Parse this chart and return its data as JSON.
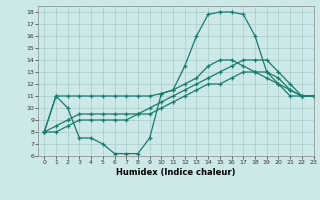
{
  "xlabel": "Humidex (Indice chaleur)",
  "ylabel": "",
  "bg_color": "#cce8e8",
  "line_color": "#1a7a6e",
  "grid_color": "#aacccc",
  "xlim": [
    -0.5,
    23
  ],
  "ylim": [
    6,
    18.5
  ],
  "xticks": [
    0,
    1,
    2,
    3,
    4,
    5,
    6,
    7,
    8,
    9,
    10,
    11,
    12,
    13,
    14,
    15,
    16,
    17,
    18,
    19,
    20,
    21,
    22,
    23
  ],
  "yticks": [
    6,
    7,
    8,
    9,
    10,
    11,
    12,
    13,
    14,
    15,
    16,
    17,
    18
  ],
  "lines": [
    {
      "x": [
        0,
        1,
        2,
        3,
        4,
        5,
        6,
        7,
        8,
        9,
        10,
        11,
        12,
        13,
        14,
        15,
        16,
        17,
        18,
        19,
        20,
        21,
        22,
        23
      ],
      "y": [
        8,
        11,
        10,
        7.5,
        7.5,
        7,
        6.2,
        6.2,
        6.2,
        7.5,
        11.2,
        11.5,
        13.5,
        16,
        17.8,
        18,
        18,
        17.8,
        16,
        13,
        12,
        11,
        11,
        11
      ]
    },
    {
      "x": [
        0,
        1,
        2,
        3,
        4,
        5,
        6,
        7,
        8,
        9,
        10,
        11,
        12,
        13,
        14,
        15,
        16,
        17,
        18,
        19,
        20,
        21,
        22,
        23
      ],
      "y": [
        8,
        11,
        11,
        11,
        11,
        11,
        11,
        11,
        11,
        11,
        11.2,
        11.5,
        12,
        12.5,
        13.5,
        14,
        14,
        13.5,
        13,
        12.5,
        12,
        11.5,
        11,
        11
      ]
    },
    {
      "x": [
        0,
        1,
        2,
        3,
        4,
        5,
        6,
        7,
        8,
        9,
        10,
        11,
        12,
        13,
        14,
        15,
        16,
        17,
        18,
        19,
        20,
        21,
        22,
        23
      ],
      "y": [
        8,
        8.5,
        9,
        9.5,
        9.5,
        9.5,
        9.5,
        9.5,
        9.5,
        10,
        10.5,
        11,
        11.5,
        12,
        12.5,
        13,
        13.5,
        14,
        14,
        14,
        13,
        12,
        11,
        11
      ]
    },
    {
      "x": [
        0,
        1,
        2,
        3,
        4,
        5,
        6,
        7,
        8,
        9,
        10,
        11,
        12,
        13,
        14,
        15,
        16,
        17,
        18,
        19,
        20,
        21,
        22,
        23
      ],
      "y": [
        8,
        8,
        8.5,
        9,
        9,
        9,
        9,
        9,
        9.5,
        9.5,
        10,
        10.5,
        11,
        11.5,
        12,
        12,
        12.5,
        13,
        13,
        13,
        12.5,
        11.5,
        11,
        11
      ]
    }
  ]
}
